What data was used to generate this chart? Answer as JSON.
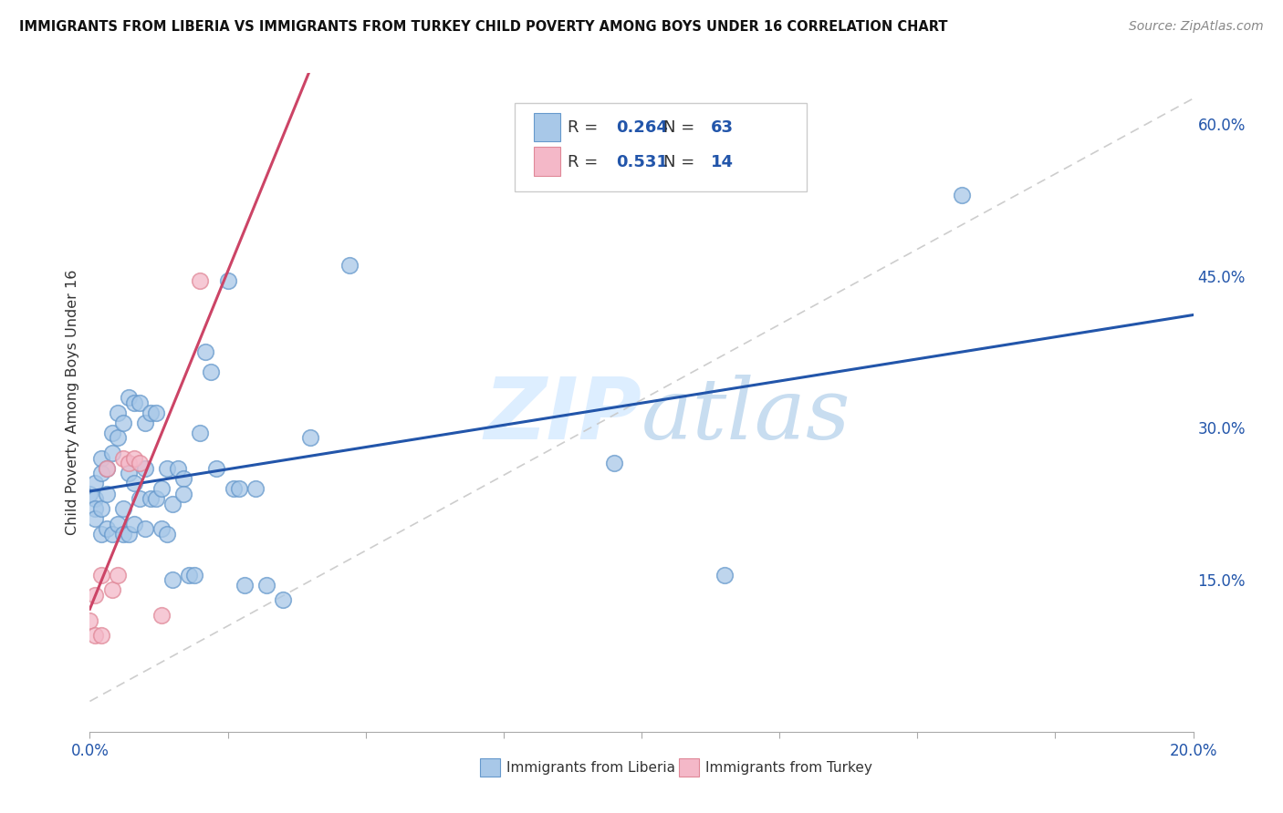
{
  "title": "IMMIGRANTS FROM LIBERIA VS IMMIGRANTS FROM TURKEY CHILD POVERTY AMONG BOYS UNDER 16 CORRELATION CHART",
  "source": "Source: ZipAtlas.com",
  "ylabel": "Child Poverty Among Boys Under 16",
  "legend1_R": "0.264",
  "legend1_N": "63",
  "legend2_R": "0.531",
  "legend2_N": "14",
  "liberia_color": "#a8c8e8",
  "turkey_color": "#f4b8c8",
  "liberia_edge_color": "#6699cc",
  "turkey_edge_color": "#e08898",
  "liberia_line_color": "#2255aa",
  "turkey_line_color": "#cc4466",
  "diagonal_color": "#c8c8c8",
  "watermark_color": "#ddeeff",
  "background_color": "#ffffff",
  "grid_color": "#dddddd",
  "xlim": [
    0.0,
    0.2
  ],
  "ylim": [
    0.0,
    0.65
  ],
  "right_yticks": [
    0.15,
    0.3,
    0.45,
    0.6
  ],
  "right_yticklabels": [
    "15.0%",
    "30.0%",
    "45.0%",
    "60.0%"
  ],
  "lib_x": [
    0.0,
    0.001,
    0.001,
    0.001,
    0.001,
    0.002,
    0.002,
    0.002,
    0.002,
    0.003,
    0.003,
    0.003,
    0.004,
    0.004,
    0.004,
    0.005,
    0.005,
    0.005,
    0.006,
    0.006,
    0.006,
    0.007,
    0.007,
    0.007,
    0.008,
    0.008,
    0.008,
    0.009,
    0.009,
    0.01,
    0.01,
    0.01,
    0.011,
    0.011,
    0.012,
    0.012,
    0.013,
    0.013,
    0.014,
    0.014,
    0.015,
    0.015,
    0.016,
    0.017,
    0.017,
    0.018,
    0.019,
    0.02,
    0.021,
    0.022,
    0.023,
    0.025,
    0.026,
    0.027,
    0.028,
    0.03,
    0.032,
    0.035,
    0.04,
    0.047,
    0.095,
    0.115,
    0.158
  ],
  "lib_y": [
    0.235,
    0.245,
    0.23,
    0.22,
    0.21,
    0.27,
    0.255,
    0.22,
    0.195,
    0.26,
    0.235,
    0.2,
    0.295,
    0.275,
    0.195,
    0.315,
    0.29,
    0.205,
    0.305,
    0.22,
    0.195,
    0.33,
    0.255,
    0.195,
    0.325,
    0.245,
    0.205,
    0.325,
    0.23,
    0.305,
    0.26,
    0.2,
    0.315,
    0.23,
    0.315,
    0.23,
    0.24,
    0.2,
    0.26,
    0.195,
    0.225,
    0.15,
    0.26,
    0.25,
    0.235,
    0.155,
    0.155,
    0.295,
    0.375,
    0.355,
    0.26,
    0.445,
    0.24,
    0.24,
    0.145,
    0.24,
    0.145,
    0.13,
    0.29,
    0.46,
    0.265,
    0.155,
    0.53
  ],
  "tur_x": [
    0.0,
    0.001,
    0.001,
    0.002,
    0.002,
    0.003,
    0.004,
    0.005,
    0.006,
    0.007,
    0.008,
    0.009,
    0.013,
    0.02
  ],
  "tur_y": [
    0.11,
    0.095,
    0.135,
    0.155,
    0.095,
    0.26,
    0.14,
    0.155,
    0.27,
    0.265,
    0.27,
    0.265,
    0.115,
    0.445
  ],
  "lib_line_x_start": 0.0,
  "lib_line_x_end": 0.2,
  "tur_line_x_start": 0.0,
  "tur_line_x_end": 0.11
}
